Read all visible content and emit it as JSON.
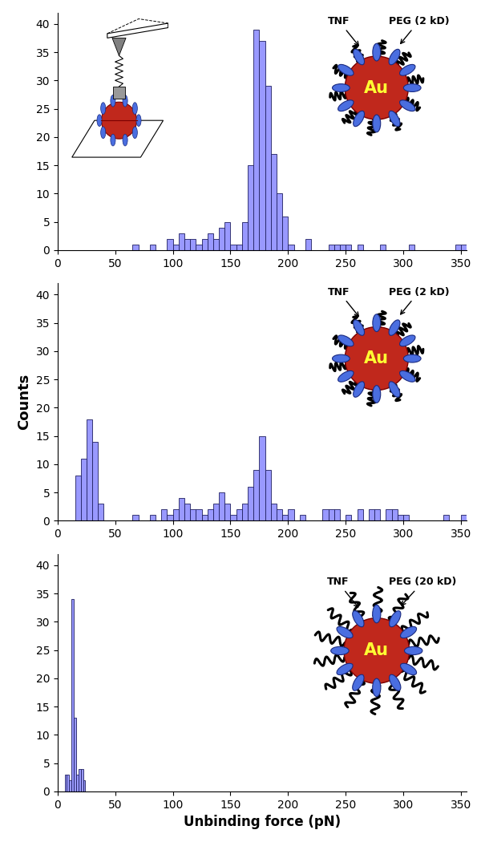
{
  "chart_data": [
    {
      "type": "histogram",
      "color": "#9999ff",
      "bins": [
        0,
        5,
        10,
        15,
        20,
        25,
        30,
        35,
        40,
        45,
        50,
        55,
        60,
        65,
        70,
        75,
        80,
        85,
        90,
        95,
        100,
        105,
        110,
        115,
        120,
        125,
        130,
        135,
        140,
        145,
        150,
        155,
        160,
        165,
        170,
        175,
        180,
        185,
        190,
        195,
        200,
        205,
        210,
        215,
        220,
        225,
        230,
        235,
        240,
        245,
        250,
        255,
        260,
        265,
        270,
        275,
        280,
        285,
        290,
        295,
        300,
        305,
        310,
        315,
        320,
        325,
        330,
        335,
        340,
        345,
        350,
        355
      ],
      "counts": [
        0,
        0,
        0,
        0,
        0,
        0,
        0,
        0,
        0,
        0,
        0,
        0,
        0,
        1,
        0,
        0,
        1,
        0,
        0,
        2,
        1,
        3,
        2,
        2,
        1,
        2,
        3,
        2,
        4,
        5,
        1,
        1,
        5,
        15,
        39,
        37,
        29,
        17,
        10,
        6,
        1,
        0,
        0,
        2,
        0,
        0,
        0,
        1,
        1,
        1,
        1,
        0,
        1,
        0,
        0,
        0,
        1,
        0,
        0,
        0,
        0,
        1,
        0,
        0,
        0,
        0,
        0,
        0,
        0,
        1,
        1
      ],
      "xlim": [
        0,
        355
      ],
      "xticks": [
        0,
        50,
        100,
        150,
        200,
        250,
        300,
        350
      ],
      "ylim": [
        0,
        42
      ],
      "yticks": [
        0,
        5,
        10,
        15,
        20,
        25,
        30,
        35,
        40
      ],
      "annotations": [
        "Au",
        "TNF",
        "PEG (2 kD)"
      ]
    },
    {
      "type": "histogram",
      "color": "#9999ff",
      "bins": [
        0,
        5,
        10,
        15,
        20,
        25,
        30,
        35,
        40,
        45,
        50,
        55,
        60,
        65,
        70,
        75,
        80,
        85,
        90,
        95,
        100,
        105,
        110,
        115,
        120,
        125,
        130,
        135,
        140,
        145,
        150,
        155,
        160,
        165,
        170,
        175,
        180,
        185,
        190,
        195,
        200,
        205,
        210,
        215,
        220,
        225,
        230,
        235,
        240,
        245,
        250,
        255,
        260,
        265,
        270,
        275,
        280,
        285,
        290,
        295,
        300,
        305,
        310,
        315,
        320,
        325,
        330,
        335,
        340,
        345,
        350,
        355
      ],
      "counts": [
        0,
        0,
        0,
        8,
        11,
        18,
        14,
        3,
        0,
        0,
        0,
        0,
        0,
        1,
        0,
        0,
        1,
        0,
        2,
        1,
        2,
        4,
        3,
        2,
        2,
        1,
        2,
        3,
        5,
        3,
        1,
        2,
        3,
        6,
        9,
        15,
        9,
        3,
        2,
        1,
        2,
        0,
        1,
        0,
        0,
        0,
        2,
        2,
        2,
        0,
        1,
        0,
        2,
        0,
        2,
        2,
        0,
        2,
        2,
        1,
        1,
        0,
        0,
        0,
        0,
        0,
        0,
        1,
        0,
        0,
        1
      ],
      "xlim": [
        0,
        355
      ],
      "xticks": [
        0,
        50,
        100,
        150,
        200,
        250,
        300,
        350
      ],
      "ylim": [
        0,
        42
      ],
      "yticks": [
        0,
        5,
        10,
        15,
        20,
        25,
        30,
        35,
        40
      ],
      "y_label": "Counts",
      "annotations": [
        "Au",
        "TNF",
        "PEG (2 kD)"
      ]
    },
    {
      "type": "histogram",
      "color": "#9999ff",
      "bins": [
        6,
        8,
        10,
        12,
        14,
        16,
        18,
        20,
        22,
        24
      ],
      "counts": [
        3,
        3,
        2,
        34,
        13,
        3,
        4,
        4,
        2
      ],
      "xlim": [
        0,
        355
      ],
      "xticks": [
        0,
        50,
        100,
        150,
        200,
        250,
        300,
        350
      ],
      "ylim": [
        0,
        42
      ],
      "yticks": [
        0,
        5,
        10,
        15,
        20,
        25,
        30,
        35,
        40
      ],
      "x_label": "Unbinding force (pN)",
      "annotations": [
        "Au",
        "TNF",
        "PEG (20 kD)"
      ]
    }
  ]
}
